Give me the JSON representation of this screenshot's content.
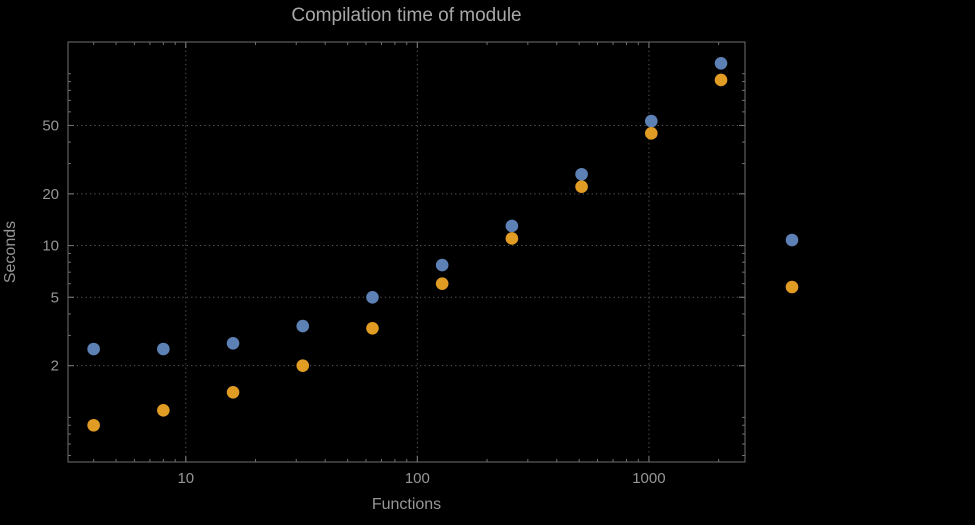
{
  "chart_data": {
    "type": "scatter",
    "title": "Compilation time of module",
    "xlabel": "Functions",
    "ylabel": "Seconds",
    "x_scale": "log",
    "y_scale": "log",
    "xlim": [
      3.1,
      2600
    ],
    "ylim": [
      0.55,
      153
    ],
    "grid": true,
    "x_ticks": [
      {
        "value": 10,
        "label": "10"
      },
      {
        "value": 100,
        "label": "100"
      },
      {
        "value": 1000,
        "label": "1000"
      }
    ],
    "y_ticks": [
      {
        "value": 2,
        "label": "2"
      },
      {
        "value": 5,
        "label": "5"
      },
      {
        "value": 10,
        "label": "10"
      },
      {
        "value": 20,
        "label": "20"
      },
      {
        "value": 50,
        "label": "50"
      }
    ],
    "x": [
      4,
      8,
      16,
      32,
      64,
      128,
      256,
      512,
      1024,
      2048
    ],
    "series": [
      {
        "name": "series-blue",
        "color": "#5E81B5",
        "values": [
          2.5,
          2.5,
          2.7,
          3.4,
          5.0,
          7.7,
          13,
          26,
          53,
          115
        ]
      },
      {
        "name": "series-orange",
        "color": "#E19C24",
        "values": [
          0.9,
          1.1,
          1.4,
          2.0,
          3.3,
          6.0,
          11,
          22,
          45,
          92
        ]
      }
    ],
    "legend": {
      "position": "right-outside",
      "labels_visible": false,
      "markers": [
        {
          "series": "series-blue",
          "color": "#5E81B5"
        },
        {
          "series": "series-orange",
          "color": "#E19C24"
        }
      ]
    }
  },
  "colors": {
    "background": "#000000",
    "frame": "#6f6f6f",
    "grid": "#5c5c5c",
    "text": "#969696",
    "title": "#a8a8a8"
  }
}
